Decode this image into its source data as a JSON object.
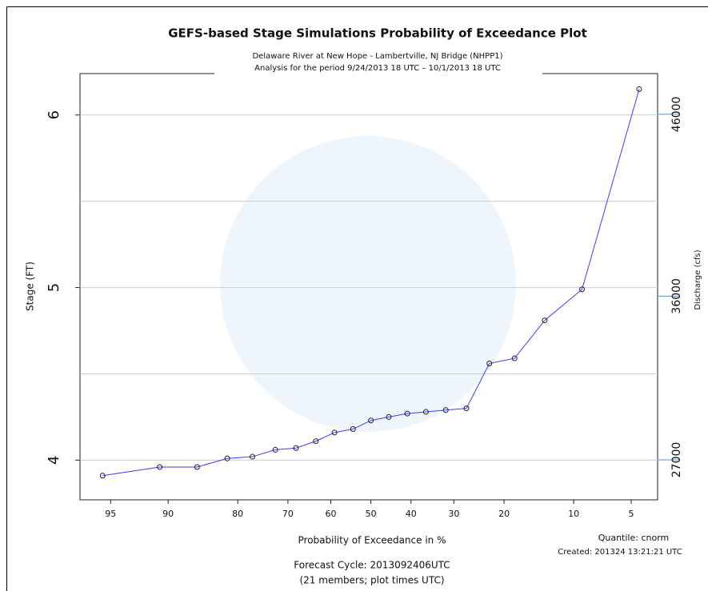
{
  "chart_data": {
    "type": "line",
    "title": "GEFS-based Stage Simulations Probability of Exceedance Plot",
    "subtitle": [
      "Delaware River at New Hope - Lambertville, NJ Bridge (NHPP1)",
      "Analysis  for the period 9/24/2013 18 UTC – 10/1/2013 18 UTC"
    ],
    "x_label": "Probability of Exceedance in %",
    "y_label": "Stage (FT)",
    "y2_label": "Discharge (cfs)",
    "notes": [
      "Quantile: cnorm",
      "Created:  201324  13:21:21 UTC",
      "Forecast Cycle:  2013092406UTC",
      "(21 members; plot times UTC)"
    ],
    "xscale": "qnorm",
    "xlim": [
      96.7,
      3.5
    ],
    "xticks": [
      95,
      90,
      80,
      70,
      60,
      50,
      40,
      30,
      20,
      10,
      5
    ],
    "ylim": [
      3.77,
      6.24
    ],
    "yticks": [
      4,
      5,
      6
    ],
    "minor_yticks": [
      4.5,
      5.5
    ],
    "y2lim": [
      24800,
      48240
    ],
    "y2ticks": [
      27000,
      36000,
      46000
    ],
    "grid": true,
    "x": [
      95.5,
      90.9,
      86.4,
      81.8,
      77.3,
      72.7,
      68.2,
      63.6,
      59.1,
      54.5,
      50,
      45.5,
      40.9,
      36.4,
      31.8,
      27.3,
      22.7,
      18.2,
      13.6,
      9.1,
      4.5
    ],
    "series": [
      {
        "color": "#3b3bff",
        "values": [
          3.91,
          3.96,
          3.96,
          4.01,
          4.02,
          4.06,
          4.07,
          4.11,
          4.16,
          4.18,
          4.23,
          4.25,
          4.27,
          4.28,
          4.29,
          4.3,
          4.56,
          4.59,
          4.81,
          4.99,
          6.15
        ]
      }
    ]
  }
}
